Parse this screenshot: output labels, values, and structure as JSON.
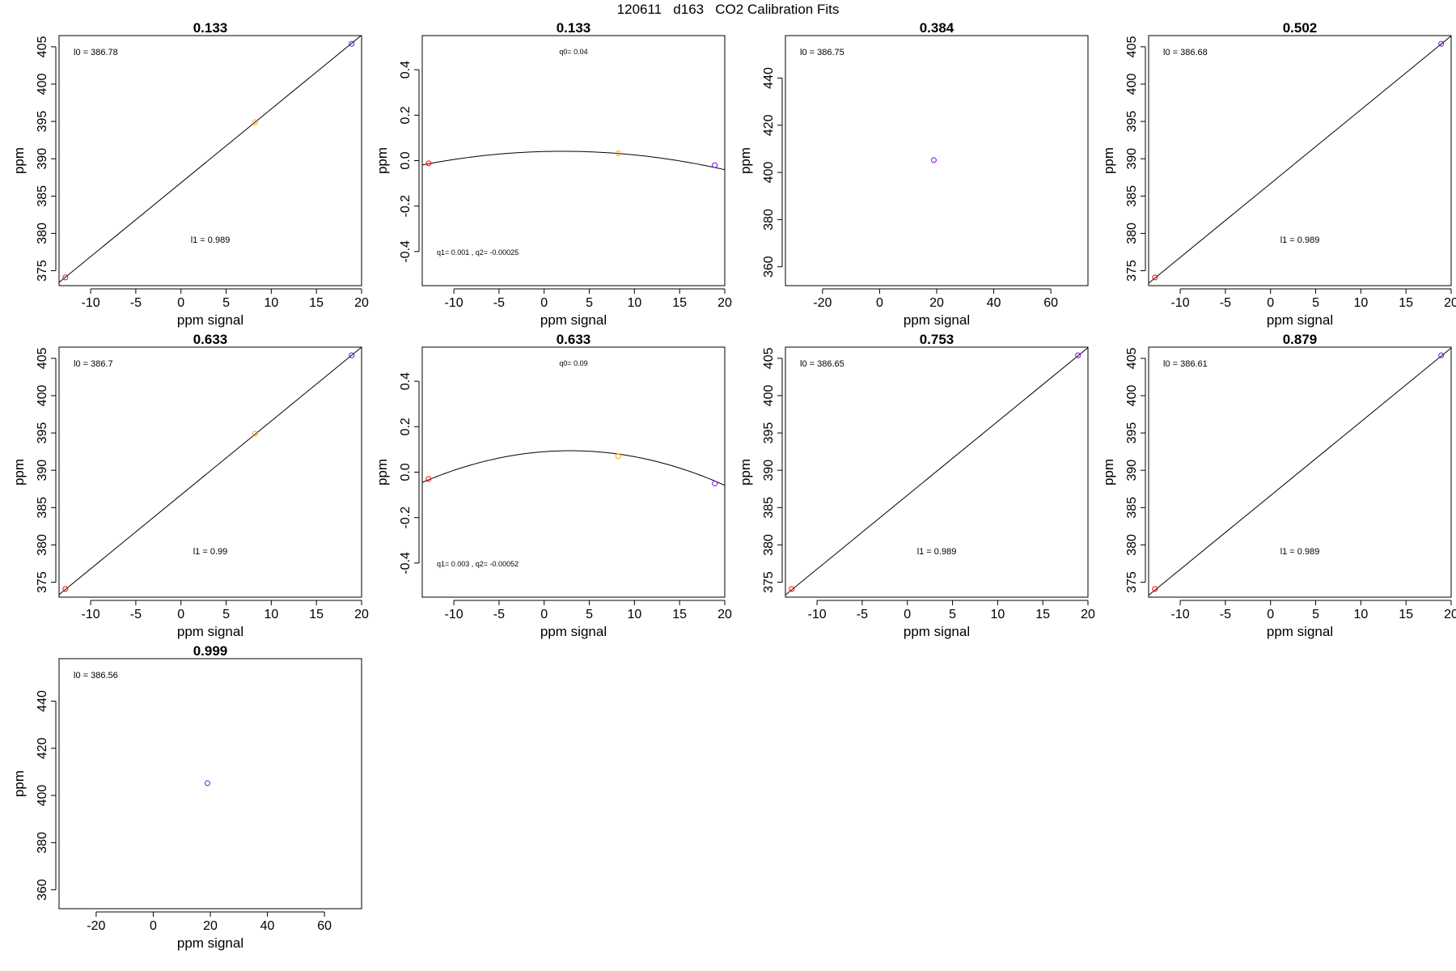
{
  "figure_title": "120611   d163   CO2 Calibration Fits",
  "colors": {
    "frame": "#000000",
    "red": "#ff0000",
    "orange": "#ffa500",
    "purple": "#8000ff",
    "fit_line": "#000000"
  },
  "chart_data": [
    {
      "type": "scatter",
      "title": "0.133",
      "xlabel": "ppm signal",
      "ylabel": "ppm",
      "xlim": [
        -13.5,
        20
      ],
      "ylim": [
        373,
        406.5
      ],
      "xticks": [
        "-10",
        "-5",
        "0",
        "5",
        "10",
        "15",
        "20"
      ],
      "yticks": [
        "375",
        "380",
        "385",
        "390",
        "395",
        "400",
        "405"
      ],
      "points": [
        {
          "x": -12.8,
          "y": 374.1,
          "color": "red"
        },
        {
          "x": 8.2,
          "y": 394.9,
          "color": "orange"
        },
        {
          "x": 18.9,
          "y": 405.4,
          "color": "purple"
        }
      ],
      "fit": {
        "kind": "linear",
        "intercept": 386.78,
        "slope": 0.989
      },
      "annotations": [
        {
          "text": "l0 =  386.78",
          "pos": "top-left"
        },
        {
          "text": "l1 =  0.989",
          "pos": "bottom-center"
        }
      ]
    },
    {
      "type": "scatter",
      "title": "0.133",
      "xlabel": "ppm signal",
      "ylabel": "ppm",
      "xlim": [
        -13.5,
        20
      ],
      "ylim": [
        -0.55,
        0.55
      ],
      "xticks": [
        "-10",
        "-5",
        "0",
        "5",
        "10",
        "15",
        "20"
      ],
      "yticks": [
        "-0.4",
        "-0.2",
        "0.0",
        "0.2",
        "0.4"
      ],
      "points": [
        {
          "x": -12.8,
          "y": -0.012,
          "color": "red"
        },
        {
          "x": 8.2,
          "y": 0.032,
          "color": "orange"
        },
        {
          "x": 18.9,
          "y": -0.02,
          "color": "purple"
        }
      ],
      "fit": {
        "kind": "quadratic",
        "q0": 0.04,
        "q1": 0.001,
        "q2": -0.00025
      },
      "annotations": [
        {
          "text": "q0= 0.04",
          "pos": "top-center"
        },
        {
          "text": "q1= 0.001 , q2= -0.00025",
          "pos": "bottom-left"
        }
      ]
    },
    {
      "type": "scatter",
      "title": "0.384",
      "xlabel": "ppm signal",
      "ylabel": "ppm",
      "xlim": [
        -33,
        73
      ],
      "ylim": [
        352,
        458
      ],
      "xticks": [
        "-20",
        "0",
        "20",
        "40",
        "60"
      ],
      "yticks": [
        "360",
        "380",
        "400",
        "420",
        "440"
      ],
      "points": [
        {
          "x": 19,
          "y": 405.2,
          "color": "purple"
        }
      ],
      "fit": null,
      "annotations": [
        {
          "text": "l0 =  386.75",
          "pos": "top-left"
        }
      ]
    },
    {
      "type": "scatter",
      "title": "0.502",
      "xlabel": "ppm signal",
      "ylabel": "ppm",
      "xlim": [
        -13.5,
        20
      ],
      "ylim": [
        373,
        406.5
      ],
      "xticks": [
        "-10",
        "-5",
        "0",
        "5",
        "10",
        "15",
        "20"
      ],
      "yticks": [
        "375",
        "380",
        "385",
        "390",
        "395",
        "400",
        "405"
      ],
      "points": [
        {
          "x": -12.8,
          "y": 374.1,
          "color": "red"
        },
        {
          "x": 18.9,
          "y": 405.4,
          "color": "purple"
        }
      ],
      "fit": {
        "kind": "linear",
        "intercept": 386.68,
        "slope": 0.989
      },
      "annotations": [
        {
          "text": "l0 =  386.68",
          "pos": "top-left"
        },
        {
          "text": "l1 =  0.989",
          "pos": "bottom-center"
        }
      ]
    },
    {
      "type": "scatter",
      "title": "0.633",
      "xlabel": "ppm signal",
      "ylabel": "ppm",
      "xlim": [
        -13.5,
        20
      ],
      "ylim": [
        373,
        406.5
      ],
      "xticks": [
        "-10",
        "-5",
        "0",
        "5",
        "10",
        "15",
        "20"
      ],
      "yticks": [
        "375",
        "380",
        "385",
        "390",
        "395",
        "400",
        "405"
      ],
      "points": [
        {
          "x": -12.8,
          "y": 374.1,
          "color": "red"
        },
        {
          "x": 8.2,
          "y": 394.9,
          "color": "orange"
        },
        {
          "x": 18.9,
          "y": 405.4,
          "color": "purple"
        }
      ],
      "fit": {
        "kind": "linear",
        "intercept": 386.7,
        "slope": 0.99
      },
      "annotations": [
        {
          "text": "l0 =  386.7",
          "pos": "top-left"
        },
        {
          "text": "l1 =  0.99",
          "pos": "bottom-center"
        }
      ]
    },
    {
      "type": "scatter",
      "title": "0.633",
      "xlabel": "ppm signal",
      "ylabel": "ppm",
      "xlim": [
        -13.5,
        20
      ],
      "ylim": [
        -0.55,
        0.55
      ],
      "xticks": [
        "-10",
        "-5",
        "0",
        "5",
        "10",
        "15",
        "20"
      ],
      "yticks": [
        "-0.4",
        "-0.2",
        "0.0",
        "0.2",
        "0.4"
      ],
      "points": [
        {
          "x": -12.8,
          "y": -0.03,
          "color": "red"
        },
        {
          "x": 8.2,
          "y": 0.07,
          "color": "orange"
        },
        {
          "x": 18.9,
          "y": -0.05,
          "color": "purple"
        }
      ],
      "fit": {
        "kind": "quadratic",
        "q0": 0.09,
        "q1": 0.003,
        "q2": -0.00052
      },
      "annotations": [
        {
          "text": "q0= 0.09",
          "pos": "top-center"
        },
        {
          "text": "q1= 0.003 , q2= -0.00052",
          "pos": "bottom-left"
        }
      ]
    },
    {
      "type": "scatter",
      "title": "0.753",
      "xlabel": "ppm signal",
      "ylabel": "ppm",
      "xlim": [
        -13.5,
        20
      ],
      "ylim": [
        373,
        406.5
      ],
      "xticks": [
        "-10",
        "-5",
        "0",
        "5",
        "10",
        "15",
        "20"
      ],
      "yticks": [
        "375",
        "380",
        "385",
        "390",
        "395",
        "400",
        "405"
      ],
      "points": [
        {
          "x": -12.8,
          "y": 374.1,
          "color": "red"
        },
        {
          "x": 18.9,
          "y": 405.4,
          "color": "purple"
        }
      ],
      "fit": {
        "kind": "linear",
        "intercept": 386.65,
        "slope": 0.989
      },
      "annotations": [
        {
          "text": "l0 =  386.65",
          "pos": "top-left"
        },
        {
          "text": "l1 =  0.989",
          "pos": "bottom-center"
        }
      ]
    },
    {
      "type": "scatter",
      "title": "0.879",
      "xlabel": "ppm signal",
      "ylabel": "ppm",
      "xlim": [
        -13.5,
        20
      ],
      "ylim": [
        373,
        406.5
      ],
      "xticks": [
        "-10",
        "-5",
        "0",
        "5",
        "10",
        "15",
        "20"
      ],
      "yticks": [
        "375",
        "380",
        "385",
        "390",
        "395",
        "400",
        "405"
      ],
      "points": [
        {
          "x": -12.8,
          "y": 374.1,
          "color": "red"
        },
        {
          "x": 18.9,
          "y": 405.4,
          "color": "purple"
        }
      ],
      "fit": {
        "kind": "linear",
        "intercept": 386.61,
        "slope": 0.989
      },
      "annotations": [
        {
          "text": "l0 =  386.61",
          "pos": "top-left"
        },
        {
          "text": "l1 =  0.989",
          "pos": "bottom-center"
        }
      ]
    },
    {
      "type": "scatter",
      "title": "0.999",
      "xlabel": "ppm signal",
      "ylabel": "ppm",
      "xlim": [
        -33,
        73
      ],
      "ylim": [
        352,
        458
      ],
      "xticks": [
        "-20",
        "0",
        "20",
        "40",
        "60"
      ],
      "yticks": [
        "360",
        "380",
        "400",
        "420",
        "440"
      ],
      "points": [
        {
          "x": 19,
          "y": 405.2,
          "color": "purple"
        }
      ],
      "fit": null,
      "annotations": [
        {
          "text": "l0 =  386.56",
          "pos": "top-left"
        }
      ]
    }
  ]
}
